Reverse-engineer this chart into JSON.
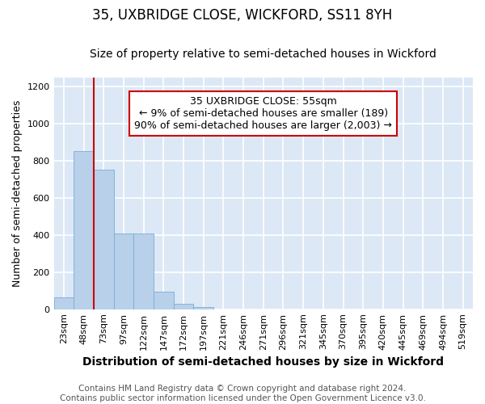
{
  "title": "35, UXBRIDGE CLOSE, WICKFORD, SS11 8YH",
  "subtitle": "Size of property relative to semi-detached houses in Wickford",
  "xlabel": "Distribution of semi-detached houses by size in Wickford",
  "ylabel": "Number of semi-detached properties",
  "footer_line1": "Contains HM Land Registry data © Crown copyright and database right 2024.",
  "footer_line2": "Contains public sector information licensed under the Open Government Licence v3.0.",
  "categories": [
    "23sqm",
    "48sqm",
    "73sqm",
    "97sqm",
    "122sqm",
    "147sqm",
    "172sqm",
    "197sqm",
    "221sqm",
    "246sqm",
    "271sqm",
    "296sqm",
    "321sqm",
    "345sqm",
    "370sqm",
    "395sqm",
    "420sqm",
    "445sqm",
    "469sqm",
    "494sqm",
    "519sqm"
  ],
  "values": [
    65,
    855,
    755,
    410,
    410,
    95,
    28,
    10,
    0,
    0,
    0,
    0,
    0,
    0,
    0,
    0,
    0,
    0,
    0,
    0,
    0
  ],
  "bar_color": "#b8d0ea",
  "bar_edge_color": "#7aadd4",
  "ylim": [
    0,
    1250
  ],
  "yticks": [
    0,
    200,
    400,
    600,
    800,
    1000,
    1200
  ],
  "red_line_x": 1.5,
  "annotation_text": "35 UXBRIDGE CLOSE: 55sqm\n← 9% of semi-detached houses are smaller (189)\n90% of semi-detached houses are larger (2,003) →",
  "annotation_box_color": "#ffffff",
  "annotation_box_edge_color": "#cc0000",
  "red_line_color": "#cc0000",
  "plot_bg_color": "#dce8f5",
  "fig_bg_color": "#ffffff",
  "grid_color": "#ffffff",
  "title_fontsize": 12,
  "subtitle_fontsize": 10,
  "xlabel_fontsize": 10,
  "ylabel_fontsize": 9,
  "tick_fontsize": 8,
  "annotation_fontsize": 9,
  "footer_fontsize": 7.5
}
